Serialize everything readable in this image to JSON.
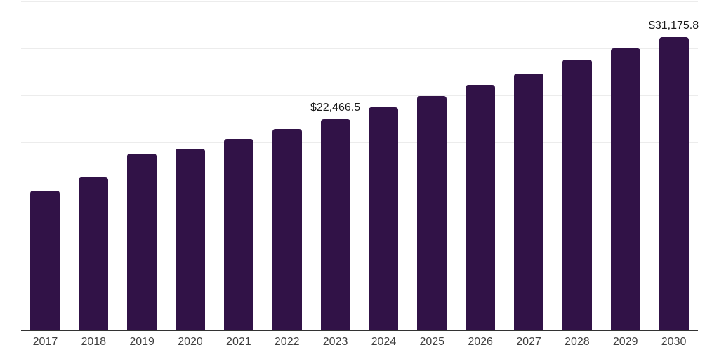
{
  "chart_data": {
    "type": "bar",
    "title": "",
    "xlabel": "",
    "ylabel": "",
    "categories": [
      "2017",
      "2018",
      "2019",
      "2020",
      "2021",
      "2022",
      "2023",
      "2024",
      "2025",
      "2026",
      "2027",
      "2028",
      "2029",
      "2030"
    ],
    "values": [
      14800,
      16200,
      18760,
      19310,
      20310,
      21360,
      22466.5,
      23670,
      24910,
      26090,
      27280,
      28780,
      29980,
      31175.8
    ],
    "annotations": [
      {
        "category": "2023",
        "text": "$22,466.5"
      },
      {
        "category": "2030",
        "text": "$31,175.8"
      }
    ],
    "ylim": [
      0,
      35000
    ],
    "grid_step": 5000,
    "grid": "on",
    "legend": "off",
    "colors": {
      "bar": "#311247",
      "grid": "#ececec",
      "axis": "#333333",
      "tick_label": "#3f3f3f",
      "data_label": "#1a1a1a",
      "background": "#ffffff"
    }
  }
}
